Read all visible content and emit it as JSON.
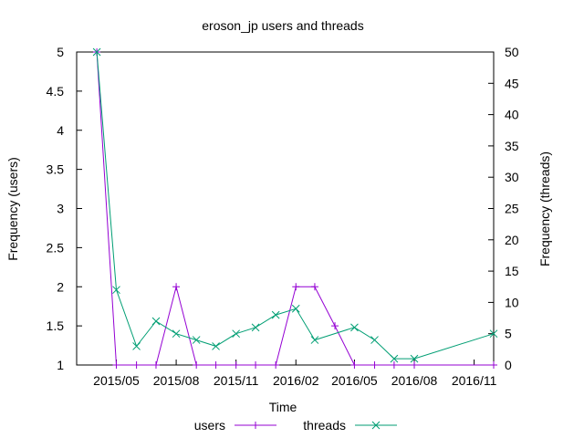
{
  "chart_data": {
    "type": "line",
    "title": "eroson_jp users and threads",
    "xlabel": "Time",
    "ylabel_left": "Frequency (users)",
    "ylabel_right": "Frequency (threads)",
    "x_ticks": [
      "2015/05",
      "2015/08",
      "2015/11",
      "2016/02",
      "2016/05",
      "2016/08",
      "2016/11"
    ],
    "x_tick_dates": [
      "2015-05-01",
      "2015-08-01",
      "2015-11-01",
      "2016-02-01",
      "2016-05-01",
      "2016-08-01",
      "2016-11-01"
    ],
    "xlim": [
      "2015-03-01",
      "2016-12-01"
    ],
    "ylim_left": [
      1,
      5
    ],
    "y_ticks_left": [
      "1",
      "1.5",
      "2",
      "2.5",
      "3",
      "3.5",
      "4",
      "4.5",
      "5"
    ],
    "ylim_right": [
      0,
      50
    ],
    "y_ticks_right": [
      "0",
      "5",
      "10",
      "15",
      "20",
      "25",
      "30",
      "35",
      "40",
      "45",
      "50"
    ],
    "grid": false,
    "legend_position": "bottom",
    "series": [
      {
        "name": "users",
        "axis": "left",
        "color": "#9400d3",
        "marker": "+",
        "x": [
          "2015-04-01",
          "2015-05-01",
          "2015-06-01",
          "2015-07-01",
          "2015-08-01",
          "2015-09-01",
          "2015-10-01",
          "2015-11-01",
          "2015-12-01",
          "2016-01-01",
          "2016-02-01",
          "2016-03-01",
          "2016-04-01",
          "2016-05-01",
          "2016-06-01",
          "2016-07-01",
          "2016-08-01",
          "2016-12-01"
        ],
        "y": [
          5,
          1,
          1,
          1,
          2,
          1,
          1,
          1,
          1,
          1,
          2,
          2,
          1.5,
          1,
          1,
          1,
          1,
          1
        ]
      },
      {
        "name": "threads",
        "axis": "right",
        "color": "#009e73",
        "marker": "x",
        "x": [
          "2015-04-01",
          "2015-05-01",
          "2015-06-01",
          "2015-07-01",
          "2015-08-01",
          "2015-09-01",
          "2015-10-01",
          "2015-11-01",
          "2015-12-01",
          "2016-01-01",
          "2016-02-01",
          "2016-03-01",
          "2016-05-01",
          "2016-06-01",
          "2016-07-01",
          "2016-08-01",
          "2016-12-01"
        ],
        "y": [
          50,
          12,
          3,
          7,
          5,
          4,
          3,
          5,
          6,
          8,
          9,
          4,
          6,
          4,
          1,
          1,
          5
        ]
      }
    ]
  }
}
